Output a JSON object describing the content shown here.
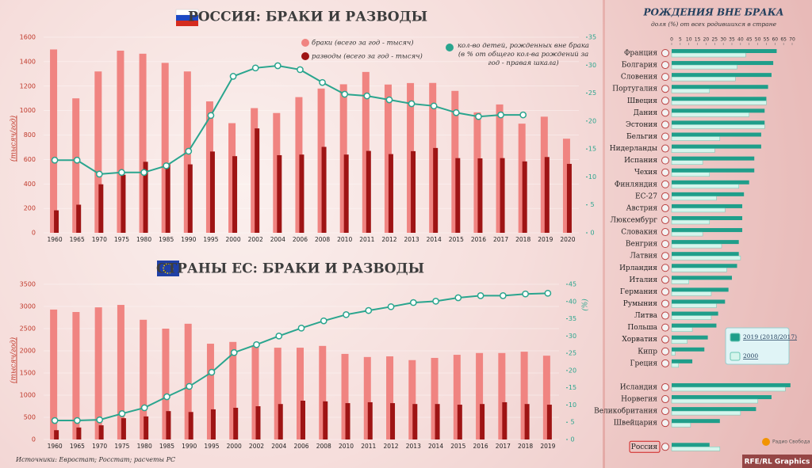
{
  "chart_data": [
    {
      "type": "bar_line",
      "title": "РОССИЯ: БРАКИ И РАЗВОДЫ",
      "ylabel": "(тысяч/год)",
      "categories": [
        "1960",
        "1965",
        "1970",
        "1975",
        "1980",
        "1985",
        "1990",
        "1995",
        "2000",
        "2002",
        "2004",
        "2006",
        "2008",
        "2010",
        "2011",
        "2012",
        "2013",
        "2014",
        "2015",
        "2016",
        "2017",
        "2018",
        "2019",
        "2020"
      ],
      "series": [
        {
          "name": "браки (всего за год - тысяч)",
          "color": "#f08481",
          "values": [
            1500,
            1100,
            1320,
            1490,
            1465,
            1390,
            1320,
            1075,
            897,
            1020,
            980,
            1110,
            1180,
            1215,
            1316,
            1213,
            1225,
            1226,
            1161,
            985,
            1050,
            893,
            950,
            770
          ]
        },
        {
          "name": "разводы (всего за год - тысяч)",
          "color": "#9e1414",
          "values": [
            184,
            230,
            397,
            475,
            581,
            570,
            560,
            665,
            627,
            854,
            635,
            640,
            703,
            640,
            670,
            644,
            668,
            694,
            611,
            609,
            611,
            584,
            620,
            564
          ]
        },
        {
          "name": "кол-во детей, рожденных вне брака (в % от общего кол-ва рождений за год - правая шкала)",
          "color": "#2aa58e",
          "axis": "y2",
          "values": [
            13,
            13,
            10.5,
            10.8,
            10.8,
            12,
            14.6,
            21,
            28,
            29.5,
            29.9,
            29.2,
            26.9,
            24.8,
            24.5,
            23.8,
            23.1,
            22.7,
            21.5,
            20.8,
            21.1,
            21.1,
            null,
            null
          ]
        }
      ],
      "ylim": [
        0,
        1600
      ],
      "yticks": [
        0,
        200,
        400,
        600,
        800,
        1000,
        1200,
        1400,
        1600
      ],
      "y2lim": [
        0,
        35
      ],
      "y2ticks": [
        0,
        5,
        10,
        15,
        20,
        25,
        30,
        35
      ],
      "legend": true
    },
    {
      "type": "bar_line",
      "title": "СТРАНЫ ЕС: БРАКИ И РАЗВОДЫ",
      "ylabel": "(тысяч/год)",
      "y2label": "(%)",
      "categories": [
        "1960",
        "1965",
        "1970",
        "1975",
        "1980",
        "1985",
        "1990",
        "1995",
        "2000",
        "2002",
        "2004",
        "2006",
        "2008",
        "2010",
        "2011",
        "2012",
        "2013",
        "2014",
        "2015",
        "2016",
        "2017",
        "2018",
        "2019"
      ],
      "series": [
        {
          "color": "#f08481",
          "values": [
            2930,
            2875,
            2980,
            3035,
            2700,
            2500,
            2610,
            2160,
            2200,
            2110,
            2070,
            2070,
            2110,
            1930,
            1860,
            1875,
            1790,
            1840,
            1910,
            1950,
            1950,
            1980,
            1890
          ]
        },
        {
          "color": "#9e1414",
          "values": [
            210,
            270,
            320,
            480,
            520,
            640,
            620,
            680,
            715,
            750,
            800,
            875,
            860,
            820,
            840,
            820,
            800,
            800,
            785,
            800,
            840,
            800,
            785
          ]
        },
        {
          "color": "#2aa58e",
          "axis": "y2",
          "values": [
            5.5,
            5.5,
            5.7,
            7.5,
            9.2,
            12.4,
            15.4,
            19.5,
            25.2,
            27.5,
            30,
            32.3,
            34.4,
            36.2,
            37.4,
            38.5,
            39.7,
            40.1,
            41.1,
            41.7,
            41.7,
            42.2,
            42.4
          ]
        }
      ],
      "ylim": [
        0,
        3500
      ],
      "yticks": [
        0,
        500,
        1000,
        1500,
        2000,
        2500,
        3000,
        3500
      ],
      "y2lim": [
        0,
        45
      ],
      "y2ticks": [
        0,
        5,
        10,
        15,
        20,
        25,
        30,
        35,
        40,
        45
      ],
      "legend": false
    },
    {
      "type": "hbar",
      "title": "РОЖДЕНИЯ ВНЕ БРАКА",
      "subtitle": "доля (%) от всех родившихся в стране",
      "categories": [
        "Франция",
        "Болгария",
        "Словения",
        "Португалия",
        "Швеция",
        "Дания",
        "Эстония",
        "Бельгия",
        "Нидерланды",
        "Испания",
        "Чехия",
        "Финляндия",
        "ЕС-27",
        "Австрия",
        "Люксембург",
        "Словакия",
        "Венгрия",
        "Латвия",
        "Ирландия",
        "Италия",
        "Германия",
        "Румыния",
        "Литва",
        "Польша",
        "Хорватия",
        "Кипр",
        "Греция",
        null,
        "Исландия",
        "Норвегия",
        "Великобритания",
        "Швейцария",
        null,
        "Россия"
      ],
      "series": [
        {
          "name": "2019 (2018/2017)",
          "color": "#1f9e8a",
          "values": [
            61,
            59,
            58,
            56,
            55,
            54,
            54,
            52,
            52,
            48,
            48,
            45,
            42,
            41,
            41,
            41,
            39,
            39,
            38,
            35,
            33,
            31,
            27,
            26,
            21,
            19,
            12,
            null,
            69,
            58,
            49,
            28,
            null,
            22
          ]
        },
        {
          "name": "2000",
          "color": "#d5f5ec",
          "values": [
            43,
            38,
            37,
            22,
            55,
            45,
            54,
            28,
            25,
            18,
            22,
            39,
            26,
            31,
            22,
            18,
            29,
            40,
            32,
            10,
            23,
            26,
            23,
            12,
            9,
            2,
            4,
            null,
            66,
            50,
            40,
            11,
            null,
            28
          ]
        }
      ],
      "xlim": [
        0,
        70
      ],
      "xticks": [
        0,
        5,
        10,
        15,
        20,
        25,
        30,
        35,
        40,
        45,
        50,
        55,
        60,
        65,
        70
      ],
      "grid": false
    }
  ],
  "source": "Источники: Евростат; Росстат; расчеты РС",
  "credit": "RFE/RL Graphics",
  "logo": "Радио Свобода"
}
